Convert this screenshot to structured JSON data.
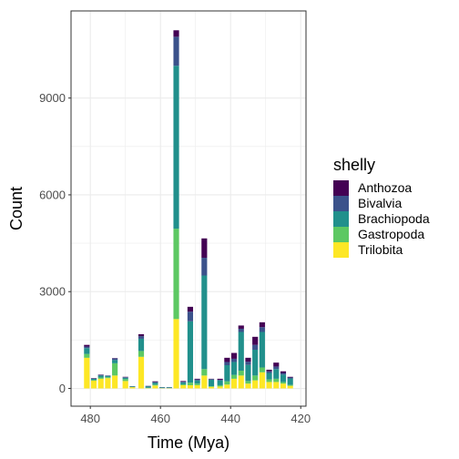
{
  "chart_data": {
    "type": "bar",
    "stacked": true,
    "xlabel": "Time (Mya)",
    "ylabel": "Count",
    "x_reversed": true,
    "xlim": [
      485.5,
      418.5
    ],
    "ylim": [
      -550,
      11700
    ],
    "xticks": [
      480,
      460,
      440,
      420
    ],
    "xtick_labels": [
      "480",
      "460",
      "440",
      "420"
    ],
    "yticks": [
      0,
      3000,
      6000,
      9000
    ],
    "ytick_labels": [
      "0",
      "3000",
      "6000",
      "9000"
    ],
    "grid": true,
    "legend": {
      "title": "shelly",
      "placement": "right"
    },
    "bar_width": 1.6,
    "series": [
      {
        "name": "Anthozoa",
        "color": "#440154"
      },
      {
        "name": "Bivalvia",
        "color": "#3b528b"
      },
      {
        "name": "Brachiopoda",
        "color": "#21908c"
      },
      {
        "name": "Gastropoda",
        "color": "#5dc863"
      },
      {
        "name": "Trilobita",
        "color": "#fde725"
      }
    ],
    "bars": [
      {
        "x": 481.0,
        "Trilobita": 950,
        "Gastropoda": 120,
        "Brachiopoda": 180,
        "Bivalvia": 50,
        "Anthozoa": 50
      },
      {
        "x": 479.0,
        "Trilobita": 240,
        "Gastropoda": 20,
        "Brachiopoda": 40,
        "Bivalvia": 10,
        "Anthozoa": 10
      },
      {
        "x": 477.0,
        "Trilobita": 300,
        "Gastropoda": 40,
        "Brachiopoda": 60,
        "Bivalvia": 20,
        "Anthozoa": 10
      },
      {
        "x": 475.0,
        "Trilobita": 320,
        "Gastropoda": 30,
        "Brachiopoda": 30,
        "Bivalvia": 20,
        "Anthozoa": 0
      },
      {
        "x": 473.0,
        "Trilobita": 400,
        "Gastropoda": 380,
        "Brachiopoda": 100,
        "Bivalvia": 50,
        "Anthozoa": 10
      },
      {
        "x": 470.0,
        "Trilobita": 230,
        "Gastropoda": 60,
        "Brachiopoda": 40,
        "Bivalvia": 20,
        "Anthozoa": 10
      },
      {
        "x": 468.0,
        "Trilobita": 40,
        "Gastropoda": 0,
        "Brachiopoda": 20,
        "Bivalvia": 10,
        "Anthozoa": 0
      },
      {
        "x": 465.5,
        "Trilobita": 980,
        "Gastropoda": 180,
        "Brachiopoda": 380,
        "Bivalvia": 80,
        "Anthozoa": 60
      },
      {
        "x": 463.5,
        "Trilobita": 10,
        "Gastropoda": 10,
        "Brachiopoda": 40,
        "Bivalvia": 20,
        "Anthozoa": 0
      },
      {
        "x": 461.5,
        "Trilobita": 90,
        "Gastropoda": 30,
        "Brachiopoda": 60,
        "Bivalvia": 20,
        "Anthozoa": 20
      },
      {
        "x": 459.5,
        "Trilobita": 10,
        "Gastropoda": 0,
        "Brachiopoda": 20,
        "Bivalvia": 10,
        "Anthozoa": 0
      },
      {
        "x": 457.5,
        "Trilobita": 10,
        "Gastropoda": 0,
        "Brachiopoda": 20,
        "Bivalvia": 10,
        "Anthozoa": 0
      },
      {
        "x": 455.5,
        "Trilobita": 2150,
        "Gastropoda": 2800,
        "Brachiopoda": 5050,
        "Bivalvia": 900,
        "Anthozoa": 200
      },
      {
        "x": 453.5,
        "Trilobita": 100,
        "Gastropoda": 30,
        "Brachiopoda": 60,
        "Bivalvia": 20,
        "Anthozoa": 20
      },
      {
        "x": 451.5,
        "Trilobita": 100,
        "Gastropoda": 80,
        "Brachiopoda": 1900,
        "Bivalvia": 300,
        "Anthozoa": 150
      },
      {
        "x": 449.5,
        "Trilobita": 100,
        "Gastropoda": 50,
        "Brachiopoda": 100,
        "Bivalvia": 30,
        "Anthozoa": 20
      },
      {
        "x": 447.5,
        "Trilobita": 400,
        "Gastropoda": 200,
        "Brachiopoda": 2900,
        "Bivalvia": 550,
        "Anthozoa": 600
      },
      {
        "x": 445.5,
        "Trilobita": 50,
        "Gastropoda": 20,
        "Brachiopoda": 200,
        "Bivalvia": 20,
        "Anthozoa": 10
      },
      {
        "x": 443.0,
        "Trilobita": 60,
        "Gastropoda": 40,
        "Brachiopoda": 150,
        "Bivalvia": 20,
        "Anthozoa": 30
      },
      {
        "x": 441.0,
        "Trilobita": 120,
        "Gastropoda": 100,
        "Brachiopoda": 500,
        "Bivalvia": 100,
        "Anthozoa": 130
      },
      {
        "x": 439.0,
        "Trilobita": 300,
        "Gastropoda": 120,
        "Brachiopoda": 400,
        "Bivalvia": 100,
        "Anthozoa": 180
      },
      {
        "x": 437.0,
        "Trilobita": 400,
        "Gastropoda": 150,
        "Brachiopoda": 1200,
        "Bivalvia": 100,
        "Anthozoa": 100
      },
      {
        "x": 435.0,
        "Trilobita": 150,
        "Gastropoda": 80,
        "Brachiopoda": 500,
        "Bivalvia": 100,
        "Anthozoa": 120
      },
      {
        "x": 433.0,
        "Trilobita": 250,
        "Gastropoda": 150,
        "Brachiopoda": 800,
        "Bivalvia": 150,
        "Anthozoa": 250
      },
      {
        "x": 431.0,
        "Trilobita": 500,
        "Gastropoda": 150,
        "Brachiopoda": 1100,
        "Bivalvia": 150,
        "Anthozoa": 150
      },
      {
        "x": 429.0,
        "Trilobita": 200,
        "Gastropoda": 80,
        "Brachiopoda": 200,
        "Bivalvia": 50,
        "Anthozoa": 50
      },
      {
        "x": 427.0,
        "Trilobita": 200,
        "Gastropoda": 100,
        "Brachiopoda": 300,
        "Bivalvia": 80,
        "Anthozoa": 120
      },
      {
        "x": 425.0,
        "Trilobita": 150,
        "Gastropoda": 50,
        "Brachiopoda": 230,
        "Bivalvia": 50,
        "Anthozoa": 50
      },
      {
        "x": 423.0,
        "Trilobita": 80,
        "Gastropoda": 30,
        "Brachiopoda": 200,
        "Bivalvia": 30,
        "Anthozoa": 20
      }
    ]
  }
}
